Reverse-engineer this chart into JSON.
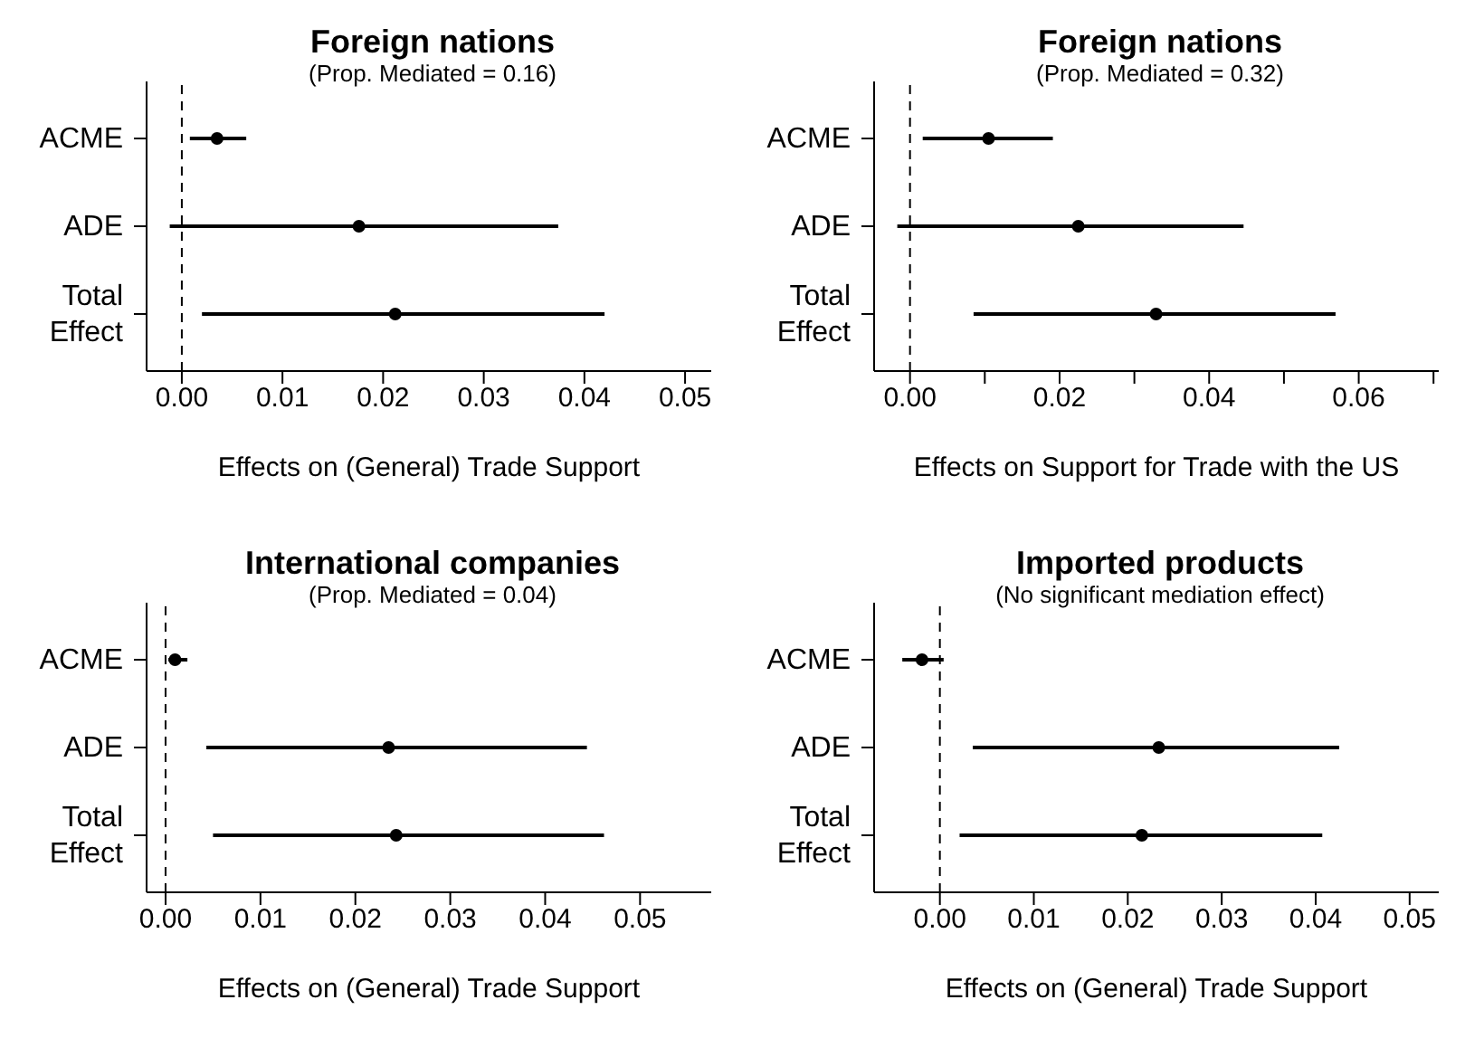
{
  "chart_data": [
    {
      "type": "scatter",
      "orientation": "horizontal",
      "title": "Foreign nations",
      "subtitle": "(Prop. Mediated = 0.16)",
      "xlabel": "Effects on (General) Trade Support",
      "categories": [
        "ACME",
        "ADE",
        "Total Effect"
      ],
      "values": [
        0.0035,
        0.0176,
        0.0212
      ],
      "errors": [
        [
          0.0008,
          0.0064
        ],
        [
          -0.0012,
          0.0374
        ],
        [
          0.002,
          0.042
        ]
      ],
      "color": "#000000",
      "marker": "circle",
      "xlim": [
        -0.0035,
        0.0526
      ],
      "xticks": [
        {
          "value": 0,
          "label": "0.00"
        },
        0.01,
        0.02,
        0.03,
        0.04,
        0.05
      ],
      "ref_lines": [
        {
          "axis": "x",
          "value": 0,
          "line_style": "dashed"
        }
      ],
      "grid": false
    },
    {
      "type": "scatter",
      "orientation": "horizontal",
      "title": "Foreign nations",
      "subtitle": "(Prop. Mediated = 0.32)",
      "xlabel": "Effects on Support for Trade with the US",
      "categories": [
        "ACME",
        "ADE",
        "Total Effect"
      ],
      "values": [
        0.0105,
        0.0225,
        0.0329
      ],
      "errors": [
        [
          0.0017,
          0.0191
        ],
        [
          -0.0017,
          0.0446
        ],
        [
          0.0085,
          0.0569
        ]
      ],
      "color": "#000000",
      "marker": "circle",
      "xlim": [
        -0.0048,
        0.0707
      ],
      "xticks": [
        {
          "value": 0,
          "label": "0.00"
        },
        {
          "value": 0.01,
          "label": null
        },
        0.02,
        {
          "value": 0.03,
          "label": null
        },
        0.04,
        {
          "value": 0.05,
          "label": null
        },
        0.06,
        {
          "value": 0.07,
          "label": null
        }
      ],
      "ref_lines": [
        {
          "axis": "x",
          "value": 0,
          "line_style": "dashed"
        }
      ],
      "grid": false
    },
    {
      "type": "scatter",
      "orientation": "horizontal",
      "title": "International companies",
      "subtitle": "(Prop. Mediated = 0.04)",
      "xlabel": "Effects on (General) Trade Support",
      "categories": [
        "ACME",
        "ADE",
        "Total Effect"
      ],
      "values": [
        0.001,
        0.0235,
        0.0243
      ],
      "errors": [
        [
          0.0003,
          0.0023
        ],
        [
          0.0043,
          0.0444
        ],
        [
          0.005,
          0.0462
        ]
      ],
      "color": "#000000",
      "marker": "circle",
      "xlim": [
        -0.002,
        0.0575
      ],
      "xticks": [
        {
          "value": 0,
          "label": "0.00"
        },
        0.01,
        0.02,
        0.03,
        0.04,
        0.05
      ],
      "ref_lines": [
        {
          "axis": "x",
          "value": 0,
          "line_style": "dashed"
        }
      ],
      "grid": false
    },
    {
      "type": "scatter",
      "orientation": "horizontal",
      "title": "Imported products",
      "subtitle": "(No significant mediation effect)",
      "xlabel": "Effects on (General) Trade Support",
      "categories": [
        "ACME",
        "ADE",
        "Total Effect"
      ],
      "values": [
        -0.0019,
        0.0233,
        0.0215
      ],
      "errors": [
        [
          -0.004,
          0.0004
        ],
        [
          0.0035,
          0.0425
        ],
        [
          0.0021,
          0.0407
        ]
      ],
      "color": "#000000",
      "marker": "circle",
      "xlim": [
        -0.007,
        0.0531
      ],
      "xticks": [
        {
          "value": 0,
          "label": "0.00"
        },
        0.01,
        0.02,
        0.03,
        0.04,
        0.05
      ],
      "ref_lines": [
        {
          "axis": "x",
          "value": 0,
          "line_style": "dashed"
        }
      ],
      "grid": false
    }
  ]
}
